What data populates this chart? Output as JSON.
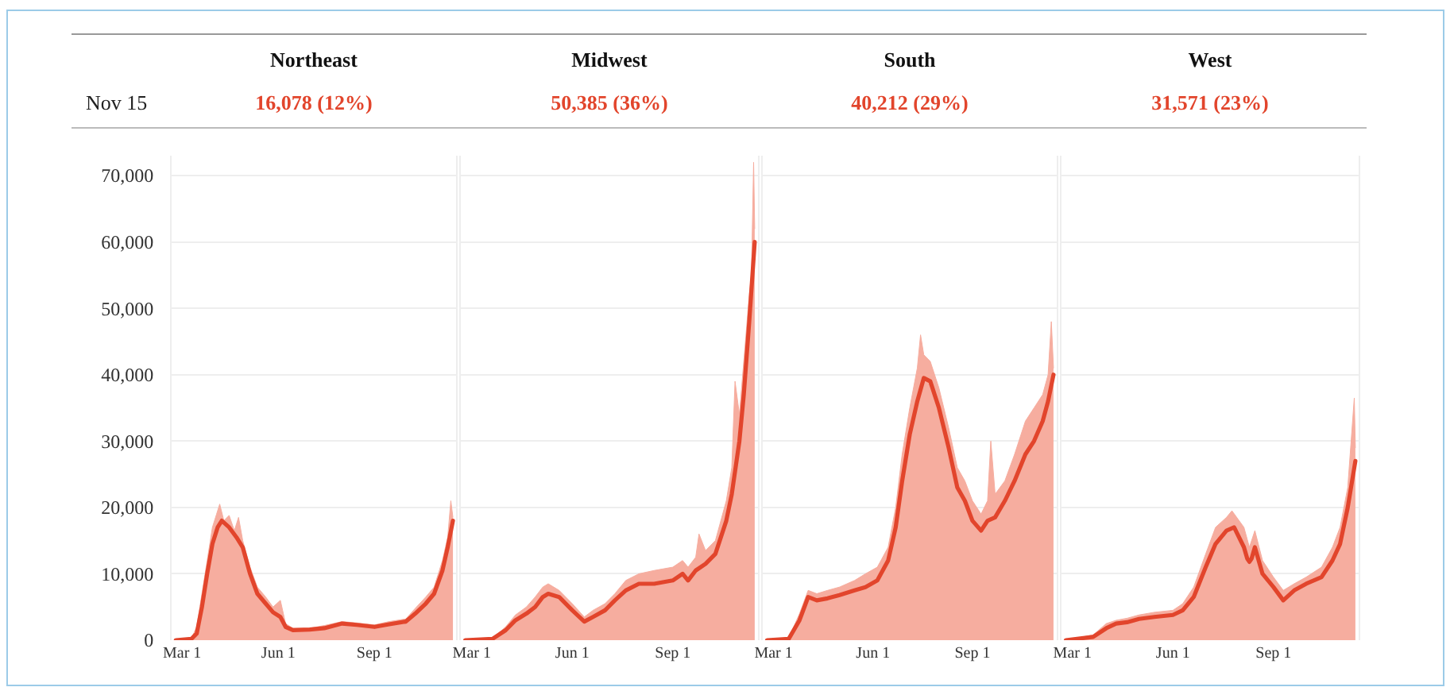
{
  "chart_data": [
    {
      "type": "area",
      "title": "Northeast",
      "subtitle": "16,078 (12%)",
      "annotations": [
        "Nov 15"
      ],
      "xlim": [
        "--02-20",
        "--11-18"
      ],
      "xticks": [
        {
          "value": "--03-01",
          "label": "Mar 1"
        },
        {
          "value": "--06-01",
          "label": "Jun 1"
        },
        {
          "value": "--09-01",
          "label": "Sep 1"
        }
      ],
      "ylim": [
        0,
        73000
      ],
      "yticks": [
        0,
        {
          "value": 10000,
          "label": "10,000"
        },
        {
          "value": 20000,
          "label": "20,000"
        },
        {
          "value": 30000,
          "label": "30,000"
        },
        {
          "value": 40000,
          "label": "40,000"
        },
        {
          "value": 50000,
          "label": "50,000"
        },
        {
          "value": 60000,
          "label": "60,000"
        },
        {
          "value": 70000,
          "label": "70,000"
        }
      ],
      "grid": "y",
      "series": [
        {
          "type": "area",
          "color": "#f6ad9f",
          "x": [
            "--02-24",
            "--03-10",
            "--03-15",
            "--03-20",
            "--03-25",
            "--03-30",
            "--04-03",
            "--04-06",
            "--04-10",
            "--04-15",
            "--04-20",
            "--04-24",
            "--04-28",
            "--05-05",
            "--05-12",
            "--05-20",
            "--05-27",
            "--06-03",
            "--06-08",
            "--06-15",
            "--07-01",
            "--07-15",
            "--08-01",
            "--08-15",
            "--09-01",
            "--09-15",
            "--10-01",
            "--10-10",
            "--10-20",
            "--10-28",
            "--11-05",
            "--11-10",
            "--11-13",
            "--11-15"
          ],
          "values": [
            0,
            300,
            2000,
            7000,
            12000,
            17000,
            19000,
            20500,
            18000,
            18800,
            16500,
            18500,
            15000,
            11000,
            8000,
            6500,
            5000,
            6000,
            2500,
            1800,
            1800,
            2200,
            2800,
            2600,
            2300,
            2800,
            3200,
            4800,
            6500,
            8000,
            12000,
            15500,
            21000,
            18500
          ]
        },
        {
          "type": "line",
          "color": "#e2452c",
          "x": [
            "--02-24",
            "--03-10",
            "--03-15",
            "--03-20",
            "--03-25",
            "--03-30",
            "--04-04",
            "--04-08",
            "--04-15",
            "--04-22",
            "--04-28",
            "--05-05",
            "--05-12",
            "--05-20",
            "--05-27",
            "--06-03",
            "--06-08",
            "--06-15",
            "--07-01",
            "--07-15",
            "--08-01",
            "--08-15",
            "--09-01",
            "--09-15",
            "--10-01",
            "--10-10",
            "--10-20",
            "--10-28",
            "--11-05",
            "--11-10",
            "--11-15"
          ],
          "values": [
            0,
            200,
            1000,
            5000,
            10000,
            14500,
            17000,
            18000,
            17000,
            15500,
            14000,
            10000,
            7000,
            5500,
            4200,
            3500,
            2000,
            1500,
            1600,
            1800,
            2500,
            2300,
            2000,
            2400,
            2800,
            4000,
            5500,
            7000,
            10500,
            14000,
            18000
          ]
        }
      ]
    },
    {
      "type": "area",
      "title": "Midwest",
      "subtitle": "50,385 (36%)",
      "tick_labels": "x",
      "xlim": [
        "--02-20",
        "--11-18"
      ],
      "xticks": [
        {
          "value": "--03-01",
          "label": "Mar 1"
        },
        {
          "value": "--06-01",
          "label": "Jun 1"
        },
        {
          "value": "--09-01",
          "label": "Sep 1"
        }
      ],
      "ylim": [
        0,
        73000
      ],
      "yticks": [
        0,
        10000,
        20000,
        30000,
        40000,
        50000,
        60000,
        70000
      ],
      "grid": "y",
      "series": [
        {
          "type": "area",
          "color": "#f6ad9f",
          "x": [
            "--02-24",
            "--03-20",
            "--04-01",
            "--04-10",
            "--04-20",
            "--04-28",
            "--05-05",
            "--05-10",
            "--05-20",
            "--06-01",
            "--06-12",
            "--06-20",
            "--07-01",
            "--07-10",
            "--07-20",
            "--08-01",
            "--08-15",
            "--09-01",
            "--09-10",
            "--09-15",
            "--09-22",
            "--09-25",
            "--10-01",
            "--10-10",
            "--10-20",
            "--10-25",
            "--10-28",
            "--11-01",
            "--11-05",
            "--11-10",
            "--11-12",
            "--11-14",
            "--11-15"
          ],
          "values": [
            0,
            300,
            2000,
            3800,
            5000,
            6500,
            8000,
            8500,
            7500,
            5500,
            3500,
            4500,
            5500,
            7000,
            9000,
            10000,
            10500,
            11000,
            12000,
            11000,
            12500,
            16000,
            13500,
            15000,
            21000,
            26000,
            39000,
            34000,
            42000,
            52000,
            55000,
            72000,
            62000
          ]
        },
        {
          "type": "line",
          "color": "#e2452c",
          "x": [
            "--02-24",
            "--03-20",
            "--04-01",
            "--04-10",
            "--04-20",
            "--04-28",
            "--05-05",
            "--05-10",
            "--05-20",
            "--06-01",
            "--06-12",
            "--06-20",
            "--07-01",
            "--07-10",
            "--07-20",
            "--08-01",
            "--08-15",
            "--09-01",
            "--09-10",
            "--09-15",
            "--09-22",
            "--10-01",
            "--10-10",
            "--10-20",
            "--10-25",
            "--11-01",
            "--11-05",
            "--11-10",
            "--11-15"
          ],
          "values": [
            0,
            200,
            1500,
            3000,
            4000,
            5000,
            6500,
            7000,
            6500,
            4500,
            2800,
            3500,
            4500,
            6000,
            7500,
            8500,
            8500,
            9000,
            10000,
            9000,
            10500,
            11500,
            13000,
            18000,
            22000,
            30000,
            37000,
            48000,
            60000
          ]
        }
      ]
    },
    {
      "type": "area",
      "title": "South",
      "subtitle": "40,212 (29%)",
      "tick_labels": "x",
      "xlim": [
        "--02-20",
        "--11-18"
      ],
      "xticks": [
        {
          "value": "--03-01",
          "label": "Mar 1"
        },
        {
          "value": "--06-01",
          "label": "Jun 1"
        },
        {
          "value": "--09-01",
          "label": "Sep 1"
        }
      ],
      "ylim": [
        0,
        73000
      ],
      "yticks": [
        0,
        10000,
        20000,
        30000,
        40000,
        50000,
        60000,
        70000
      ],
      "grid": "y",
      "series": [
        {
          "type": "area",
          "color": "#f6ad9f",
          "x": [
            "--02-24",
            "--03-15",
            "--03-25",
            "--04-02",
            "--04-10",
            "--04-20",
            "--05-01",
            "--05-15",
            "--05-25",
            "--06-05",
            "--06-15",
            "--06-22",
            "--06-28",
            "--07-05",
            "--07-12",
            "--07-15",
            "--07-18",
            "--07-24",
            "--08-01",
            "--08-10",
            "--08-18",
            "--08-25",
            "--09-01",
            "--09-09",
            "--09-15",
            "--09-18",
            "--09-22",
            "--10-01",
            "--10-10",
            "--10-20",
            "--10-28",
            "--11-05",
            "--11-10",
            "--11-13",
            "--11-15"
          ],
          "values": [
            0,
            300,
            4000,
            7500,
            7000,
            7500,
            8000,
            9000,
            10000,
            11000,
            14000,
            20000,
            28000,
            35000,
            41000,
            46000,
            43000,
            42000,
            38000,
            32000,
            26000,
            24000,
            21000,
            19000,
            21000,
            30000,
            22000,
            24000,
            28000,
            33000,
            35000,
            37000,
            40000,
            48000,
            41000
          ]
        },
        {
          "type": "line",
          "color": "#e2452c",
          "x": [
            "--02-24",
            "--03-15",
            "--03-25",
            "--04-02",
            "--04-10",
            "--04-20",
            "--05-01",
            "--05-15",
            "--05-25",
            "--06-05",
            "--06-15",
            "--06-22",
            "--06-28",
            "--07-05",
            "--07-12",
            "--07-18",
            "--07-24",
            "--08-01",
            "--08-10",
            "--08-18",
            "--08-25",
            "--09-01",
            "--09-09",
            "--09-15",
            "--09-22",
            "--10-01",
            "--10-10",
            "--10-20",
            "--10-28",
            "--11-05",
            "--11-10",
            "--11-15"
          ],
          "values": [
            0,
            200,
            3000,
            6500,
            6000,
            6300,
            6800,
            7500,
            8000,
            9000,
            12000,
            17000,
            24000,
            31000,
            36000,
            39500,
            39000,
            35000,
            29000,
            23000,
            21000,
            18000,
            16500,
            18000,
            18500,
            21000,
            24000,
            28000,
            30000,
            33000,
            36000,
            40000
          ]
        }
      ]
    },
    {
      "type": "area",
      "title": "West",
      "subtitle": "31,571 (23%)",
      "tick_labels": "x",
      "xlim": [
        "--02-20",
        "--11-18"
      ],
      "xticks": [
        {
          "value": "--03-01",
          "label": "Mar 1"
        },
        {
          "value": "--06-01",
          "label": "Jun 1"
        },
        {
          "value": "--09-01",
          "label": "Sep 1"
        }
      ],
      "ylim": [
        0,
        73000
      ],
      "yticks": [
        0,
        10000,
        20000,
        30000,
        40000,
        50000,
        60000,
        70000
      ],
      "grid": "y",
      "series": [
        {
          "type": "area",
          "color": "#f6ad9f",
          "x": [
            "--02-24",
            "--03-20",
            "--04-01",
            "--04-10",
            "--04-20",
            "--05-01",
            "--05-15",
            "--06-01",
            "--06-10",
            "--06-20",
            "--07-01",
            "--07-10",
            "--07-20",
            "--07-25",
            "--08-05",
            "--08-10",
            "--08-15",
            "--08-22",
            "--09-01",
            "--09-10",
            "--09-20",
            "--10-01",
            "--10-15",
            "--10-25",
            "--11-01",
            "--11-08",
            "--11-14",
            "--11-15"
          ],
          "values": [
            0,
            800,
            2500,
            3000,
            3300,
            3800,
            4200,
            4500,
            5500,
            8000,
            13000,
            17000,
            18500,
            19500,
            17000,
            14000,
            16500,
            12000,
            9500,
            7500,
            8500,
            9500,
            11000,
            14000,
            17000,
            23000,
            36500,
            29000
          ]
        },
        {
          "type": "line",
          "color": "#e2452c",
          "x": [
            "--02-24",
            "--03-20",
            "--04-01",
            "--04-10",
            "--04-20",
            "--05-01",
            "--05-15",
            "--06-01",
            "--06-10",
            "--06-20",
            "--07-01",
            "--07-10",
            "--07-20",
            "--07-27",
            "--08-05",
            "--08-08",
            "--08-10",
            "--08-12",
            "--08-15",
            "--08-22",
            "--09-01",
            "--09-10",
            "--09-20",
            "--10-01",
            "--10-15",
            "--10-25",
            "--11-01",
            "--11-08",
            "--11-15"
          ],
          "values": [
            0,
            500,
            1800,
            2500,
            2700,
            3200,
            3500,
            3800,
            4500,
            6500,
            11000,
            14500,
            16500,
            17000,
            14000,
            12300,
            11800,
            12300,
            14000,
            10000,
            8000,
            6000,
            7500,
            8500,
            9500,
            12000,
            14500,
            20000,
            27000
          ]
        }
      ]
    }
  ]
}
